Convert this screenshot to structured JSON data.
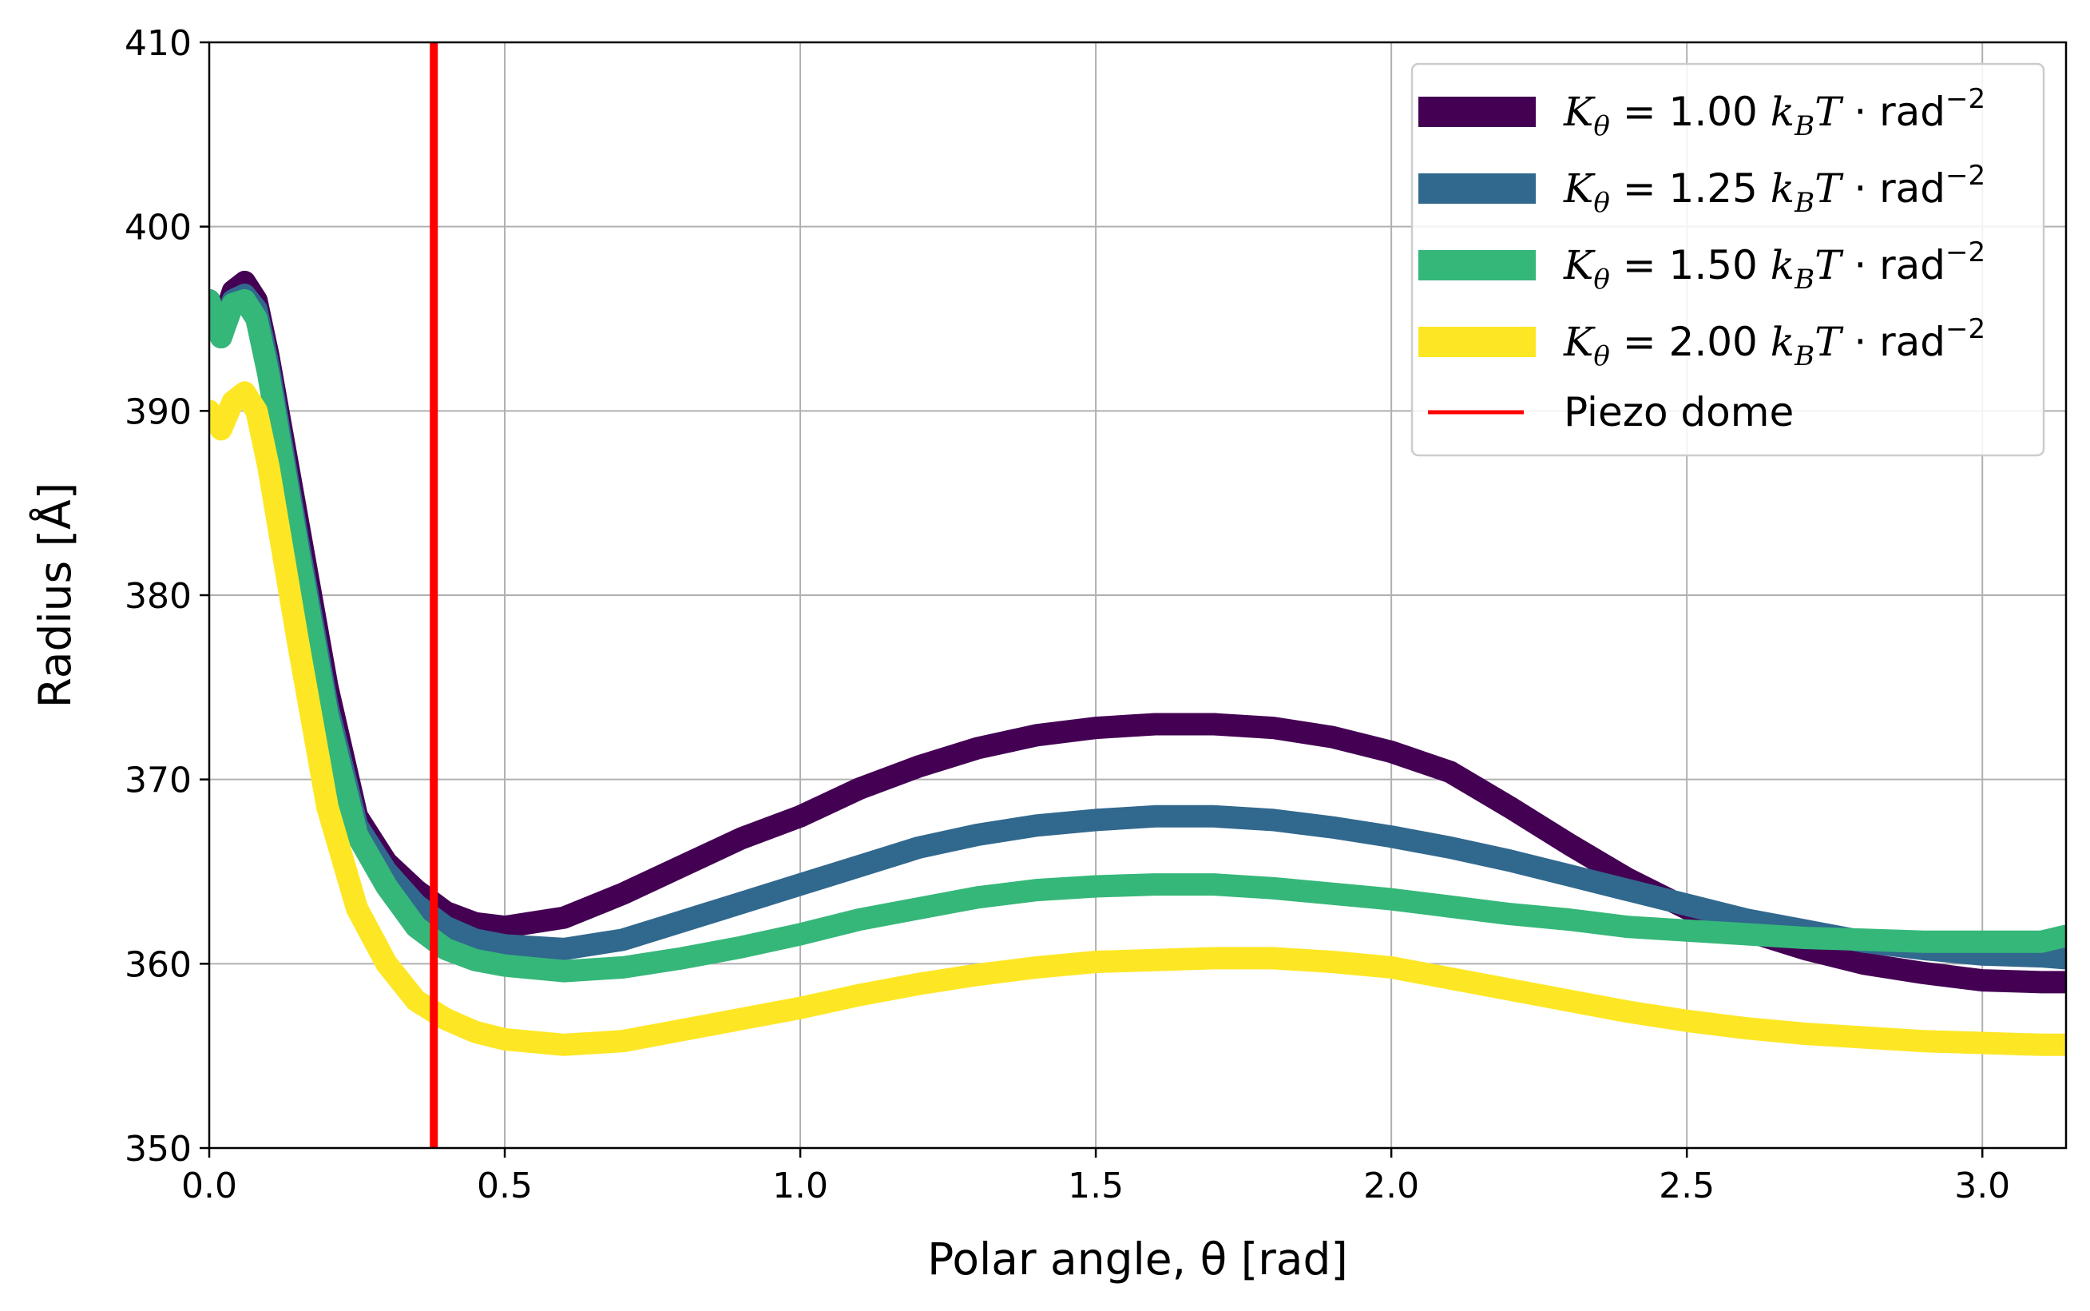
{
  "chart_data": {
    "type": "line",
    "xlabel": "Polar angle, θ [rad]",
    "ylabel": "Radius [Å]",
    "xlim": [
      0.0,
      3.1416
    ],
    "ylim": [
      350,
      410
    ],
    "xticks": [
      "0.0",
      "0.5",
      "1.0",
      "1.5",
      "2.0",
      "2.5",
      "3.0"
    ],
    "yticks": [
      "350",
      "360",
      "370",
      "380",
      "390",
      "400",
      "410"
    ],
    "grid": true,
    "legend_position": "top-right",
    "x": [
      0.0,
      0.02,
      0.04,
      0.06,
      0.08,
      0.1,
      0.15,
      0.2,
      0.25,
      0.3,
      0.35,
      0.4,
      0.45,
      0.5,
      0.6,
      0.7,
      0.8,
      0.9,
      1.0,
      1.1,
      1.2,
      1.3,
      1.4,
      1.5,
      1.6,
      1.7,
      1.8,
      1.9,
      2.0,
      2.1,
      2.2,
      2.3,
      2.4,
      2.5,
      2.6,
      2.7,
      2.8,
      2.9,
      3.0,
      3.1,
      3.14
    ],
    "series": [
      {
        "name_parts": {
          "pre": "K",
          "sub": "θ",
          "mid": " = 1.00 ",
          "k": "k",
          "ksub": "B",
          "t": "T",
          "unit": " · rad",
          "sup": "−2"
        },
        "color": "#440154",
        "values": [
          396.0,
          394.5,
          396.5,
          397.0,
          396.0,
          393.0,
          384.0,
          375.0,
          368.0,
          365.5,
          364.0,
          362.8,
          362.2,
          362.0,
          362.5,
          363.8,
          365.3,
          366.8,
          368.0,
          369.5,
          370.7,
          371.7,
          372.4,
          372.8,
          373.0,
          373.0,
          372.8,
          372.3,
          371.5,
          370.4,
          368.5,
          366.5,
          364.6,
          363.0,
          361.8,
          360.8,
          360.0,
          359.5,
          359.1,
          359.0,
          359.0
        ]
      },
      {
        "name_parts": {
          "pre": "K",
          "sub": "θ",
          "mid": " = 1.25 ",
          "k": "k",
          "ksub": "B",
          "t": "T",
          "unit": " · rad",
          "sup": "−2"
        },
        "color": "#31688e",
        "values": [
          395.5,
          394.0,
          396.0,
          396.3,
          395.5,
          392.5,
          383.0,
          374.0,
          367.5,
          365.0,
          363.2,
          362.0,
          361.3,
          361.0,
          360.8,
          361.3,
          362.3,
          363.3,
          364.3,
          365.3,
          366.3,
          367.0,
          367.5,
          367.8,
          368.0,
          368.0,
          367.8,
          367.4,
          366.9,
          366.3,
          365.6,
          364.8,
          364.0,
          363.2,
          362.4,
          361.8,
          361.2,
          360.8,
          360.5,
          360.4,
          360.3
        ]
      },
      {
        "name_parts": {
          "pre": "K",
          "sub": "θ",
          "mid": " = 1.50 ",
          "k": "k",
          "ksub": "B",
          "t": "T",
          "unit": " · rad",
          "sup": "−2"
        },
        "color": "#35b779",
        "values": [
          396.0,
          394.0,
          395.8,
          396.0,
          395.0,
          392.0,
          382.5,
          373.5,
          367.0,
          364.2,
          362.0,
          360.8,
          360.2,
          359.9,
          359.6,
          359.8,
          360.3,
          360.9,
          361.6,
          362.4,
          363.0,
          363.6,
          364.0,
          364.2,
          364.3,
          364.3,
          364.1,
          363.8,
          363.5,
          363.1,
          362.7,
          362.4,
          362.0,
          361.8,
          361.6,
          361.4,
          361.3,
          361.2,
          361.2,
          361.2,
          361.5
        ]
      },
      {
        "name_parts": {
          "pre": "K",
          "sub": "θ",
          "mid": " = 2.00 ",
          "k": "k",
          "ksub": "B",
          "t": "T",
          "unit": " · rad",
          "sup": "−2"
        },
        "color": "#fde725",
        "values": [
          390.0,
          389.0,
          390.5,
          391.0,
          390.0,
          387.0,
          377.5,
          368.5,
          363.0,
          360.0,
          358.0,
          357.0,
          356.3,
          355.9,
          355.6,
          355.8,
          356.4,
          357.0,
          357.6,
          358.3,
          358.9,
          359.4,
          359.8,
          360.1,
          360.2,
          360.3,
          360.3,
          360.1,
          359.8,
          359.2,
          358.6,
          358.0,
          357.4,
          356.9,
          356.5,
          356.2,
          356.0,
          355.8,
          355.7,
          355.6,
          355.6
        ]
      }
    ],
    "reference_line": {
      "name": "Piezo dome",
      "x": 0.38,
      "color": "#ff0000"
    }
  }
}
